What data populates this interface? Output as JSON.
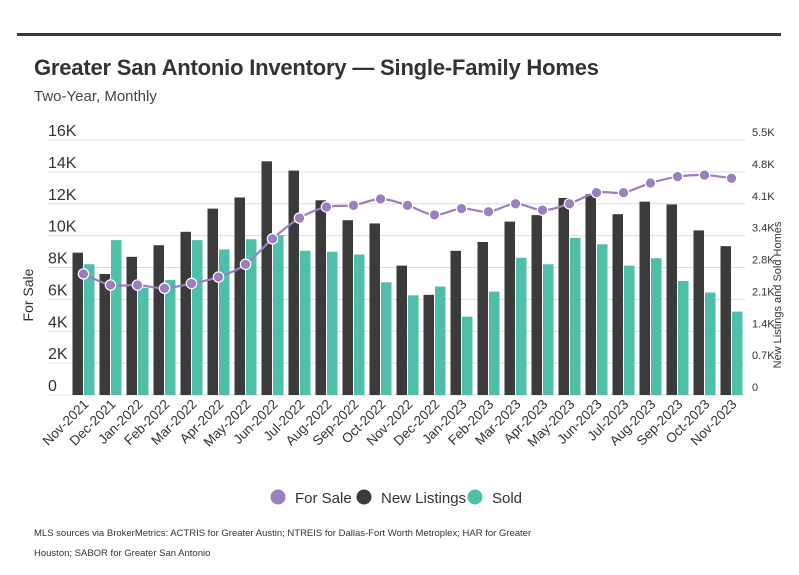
{
  "header": {
    "title": "Greater San Antonio Inventory — Single-Family Homes",
    "subtitle": "Two-Year, Monthly"
  },
  "footer": {
    "source": "MLS sources via BrokerMetrics: ACTRIS for Greater Austin; NTREIS for Dallas-Fort Worth Metroplex; HAR for Greater Houston; SABOR for Greater San Antonio"
  },
  "colors": {
    "for_sale": "#9b7fc0",
    "new_listings": "#3b3b3b",
    "sold": "#4fbfaa",
    "grid": "#dddddd",
    "axis_text": "#333333"
  },
  "chart_data": {
    "type": "bar",
    "categories": [
      "Nov-2021",
      "Dec-2021",
      "Jan-2022",
      "Feb-2022",
      "Mar-2022",
      "Apr-2022",
      "May-2022",
      "Jun-2022",
      "Jul-2022",
      "Aug-2022",
      "Sep-2022",
      "Oct-2022",
      "Nov-2022",
      "Dec-2022",
      "Jan-2023",
      "Feb-2023",
      "Mar-2023",
      "Apr-2023",
      "May-2023",
      "Jun-2023",
      "Jul-2023",
      "Aug-2023",
      "Sep-2023",
      "Oct-2023",
      "Nov-2023"
    ],
    "ylabel": "For Sale",
    "y2label": "New Listings and Sold Homes",
    "ylim": [
      0,
      16000
    ],
    "y2lim": [
      0,
      5500
    ],
    "yticks": [
      "0",
      "2K",
      "4K",
      "6K",
      "8K",
      "10K",
      "12K",
      "14K",
      "16K"
    ],
    "y2ticks": [
      "0",
      "0.7K",
      "1.4K",
      "2.1K",
      "2.8K",
      "3.4K",
      "4.1K",
      "4.8K",
      "5.5K"
    ],
    "legend_position": "bottom-center",
    "series": [
      {
        "name": "For Sale",
        "type": "line",
        "axis": "left",
        "values": [
          7600,
          6900,
          6900,
          6700,
          7000,
          7400,
          8200,
          9800,
          11100,
          11800,
          11900,
          12300,
          11900,
          11300,
          11700,
          11500,
          12000,
          11600,
          12000,
          12700,
          12700,
          13300,
          13700,
          13800,
          13600
        ]
      },
      {
        "name": "New Listings",
        "type": "bar",
        "axis": "right",
        "values": [
          3070,
          2610,
          2980,
          3230,
          3520,
          4020,
          4260,
          5040,
          4840,
          4200,
          3770,
          3700,
          2790,
          2160,
          3110,
          3300,
          3740,
          3880,
          4250,
          4330,
          3900,
          4170,
          4110,
          3550,
          3210
        ]
      },
      {
        "name": "Sold",
        "type": "bar",
        "axis": "right",
        "values": [
          2820,
          3340,
          2310,
          2480,
          3340,
          3140,
          3360,
          3450,
          3110,
          3090,
          3030,
          2430,
          2150,
          2340,
          1690,
          2230,
          2960,
          2820,
          3390,
          3250,
          2790,
          2950,
          2460,
          2210,
          1800
        ]
      }
    ]
  }
}
